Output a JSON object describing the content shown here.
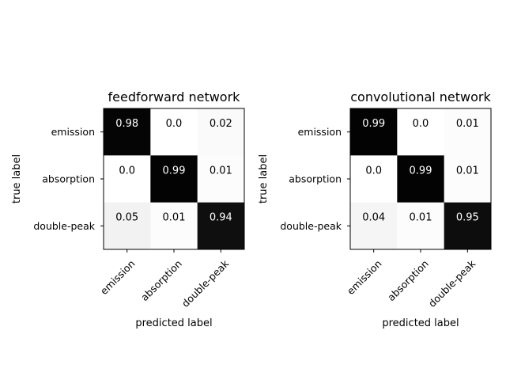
{
  "chart_data": [
    {
      "type": "heatmap",
      "title": "feedforward network",
      "xlabel": "predicted label",
      "ylabel": "true label",
      "x_categories": [
        "emission",
        "absorption",
        "double-peak"
      ],
      "y_categories": [
        "emission",
        "absorption",
        "double-peak"
      ],
      "values": [
        [
          0.98,
          0.0,
          0.02
        ],
        [
          0.0,
          0.99,
          0.01
        ],
        [
          0.05,
          0.01,
          0.94
        ]
      ],
      "cell_labels": [
        [
          "0.98",
          "0.0",
          "0.02"
        ],
        [
          "0.0",
          "0.99",
          "0.01"
        ],
        [
          "0.05",
          "0.01",
          "0.94"
        ]
      ],
      "colormap": "Greys",
      "value_range": [
        0,
        1
      ],
      "grid": false
    },
    {
      "type": "heatmap",
      "title": "convolutional network",
      "xlabel": "predicted label",
      "ylabel": "true label",
      "x_categories": [
        "emission",
        "absorption",
        "double-peak"
      ],
      "y_categories": [
        "emission",
        "absorption",
        "double-peak"
      ],
      "values": [
        [
          0.99,
          0.0,
          0.01
        ],
        [
          0.0,
          0.99,
          0.01
        ],
        [
          0.04,
          0.01,
          0.95
        ]
      ],
      "cell_labels": [
        [
          "0.99",
          "0.0",
          "0.01"
        ],
        [
          "0.0",
          "0.99",
          "0.01"
        ],
        [
          "0.04",
          "0.01",
          "0.95"
        ]
      ],
      "colormap": "Greys",
      "value_range": [
        0,
        1
      ],
      "grid": false
    }
  ]
}
